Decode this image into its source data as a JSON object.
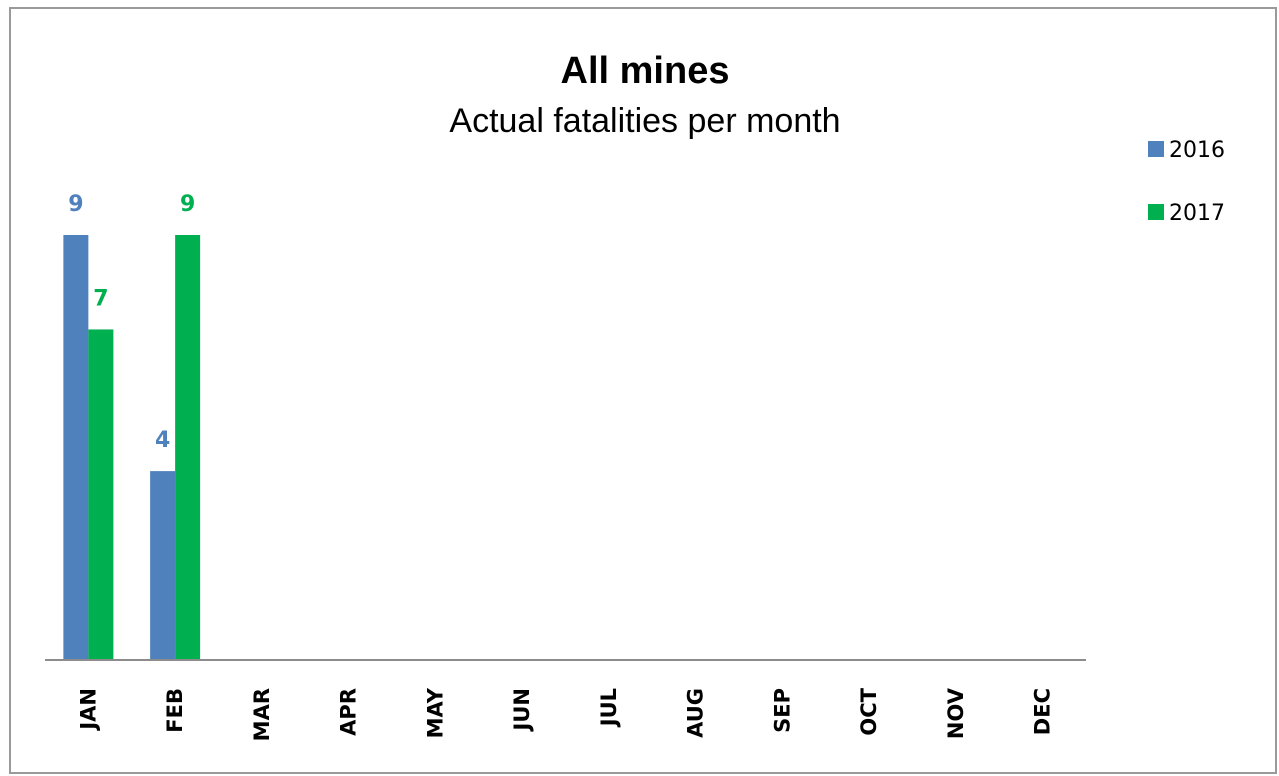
{
  "chart_data": {
    "type": "bar",
    "title": "All mines",
    "subtitle": "Actual fatalities per month",
    "categories": [
      "JAN",
      "FEB",
      "MAR",
      "APR",
      "MAY",
      "JUN",
      "JUL",
      "AUG",
      "SEP",
      "OCT",
      "NOV",
      "DEC"
    ],
    "series": [
      {
        "name": "2016",
        "color": "#4f81bd",
        "values": [
          9,
          4,
          null,
          null,
          null,
          null,
          null,
          null,
          null,
          null,
          null,
          null
        ]
      },
      {
        "name": "2017",
        "color": "#00b050",
        "values": [
          7,
          9,
          null,
          null,
          null,
          null,
          null,
          null,
          null,
          null,
          null,
          null
        ]
      }
    ],
    "xlabel": "",
    "ylabel": "",
    "ylim": [
      0,
      9
    ],
    "grid": false,
    "legend": "right",
    "data_labels": true,
    "tick_label_rotation": "vertical"
  }
}
